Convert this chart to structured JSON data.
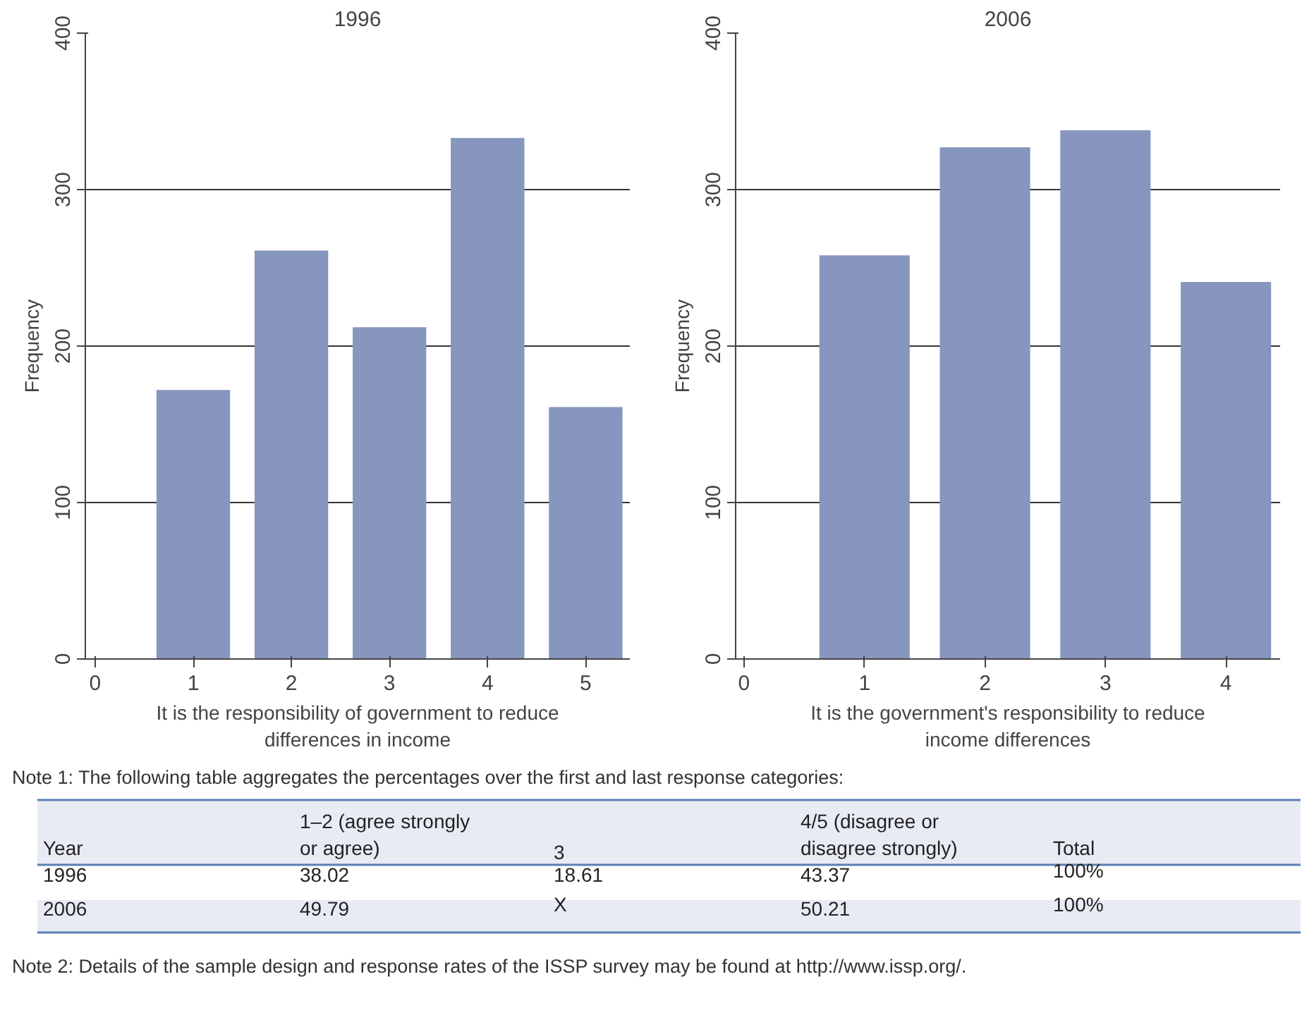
{
  "chart_data": [
    {
      "type": "bar",
      "title": "1996",
      "xlabel": "It is the responsibility of government to reduce differences in income",
      "ylabel": "Frequency",
      "x": [
        1,
        2,
        3,
        4,
        5
      ],
      "values": [
        172,
        261,
        212,
        333,
        161
      ],
      "color": "#8796be",
      "xlim": [
        -0.1,
        5.45
      ],
      "xticks": [
        0,
        1,
        2,
        3,
        4,
        5
      ],
      "ylim": [
        0,
        400
      ],
      "yticks": [
        0,
        100,
        200,
        300,
        400
      ],
      "grid": "y"
    },
    {
      "type": "bar",
      "title": "2006",
      "xlabel": "It is the government's responsibility to reduce income differences",
      "ylabel": "Frequency",
      "x": [
        1,
        2,
        3,
        4
      ],
      "values": [
        258,
        327,
        338,
        241
      ],
      "color": "#8796be",
      "xlim": [
        -0.07,
        4.45
      ],
      "xticks": [
        0,
        1,
        2,
        3,
        4
      ],
      "ylim": [
        0,
        400
      ],
      "yticks": [
        0,
        100,
        200,
        300,
        400
      ],
      "grid": "y",
      "annotations": [
        "Note 1: The following table aggregates the percentages over the first and last response categories:",
        "Year",
        "1–2 (agree strongly or agree)",
        "3",
        "4/5 (disagree or disagree strongly)",
        "Total",
        "1996",
        "38.02",
        "18.61",
        "43.37",
        "100%",
        "2006",
        "49.79",
        "X",
        "50.21",
        "100%",
        "Note 2: Details of the sample design and response rates of the ISSP survey may be found at http://www.issp.org/."
      ]
    }
  ]
}
